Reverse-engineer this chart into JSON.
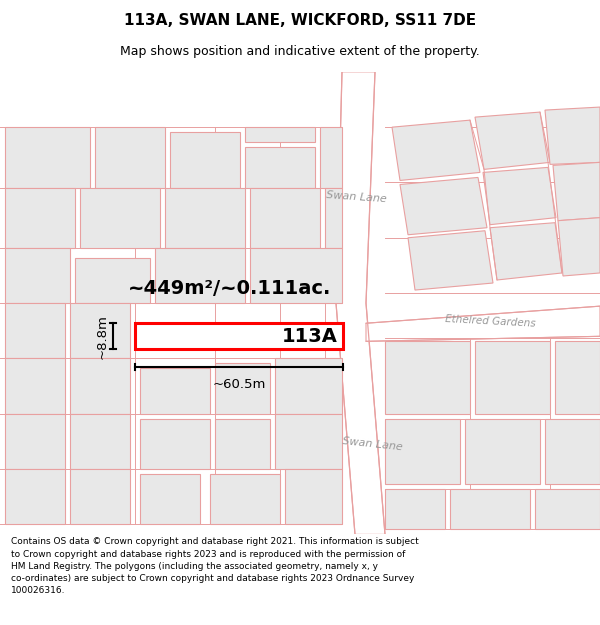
{
  "title": "113A, SWAN LANE, WICKFORD, SS11 7DE",
  "subtitle": "Map shows position and indicative extent of the property.",
  "footer": "Contains OS data © Crown copyright and database right 2021. This information is subject\nto Crown copyright and database rights 2023 and is reproduced with the permission of\nHM Land Registry. The polygons (including the associated geometry, namely x, y\nco-ordinates) are subject to Crown copyright and database rights 2023 Ordnance Survey\n100026316.",
  "map_bg": "#ffffff",
  "block_fill": "#e8e8e8",
  "block_outline": "#e8a0a0",
  "road_outline": "#e8a0a0",
  "highlight_color": "#ff0000",
  "area_text": "~449m²/~0.111ac.",
  "label_113a": "113A",
  "dim_width": "~60.5m",
  "dim_height": "~8.8m",
  "road1_upper": "Swan Lane",
  "road1_lower": "Swan Lane",
  "road2": "Ethelred Gardens",
  "road_label_color": "#999999",
  "title_fontsize": 11,
  "subtitle_fontsize": 9,
  "footer_fontsize": 6.5
}
